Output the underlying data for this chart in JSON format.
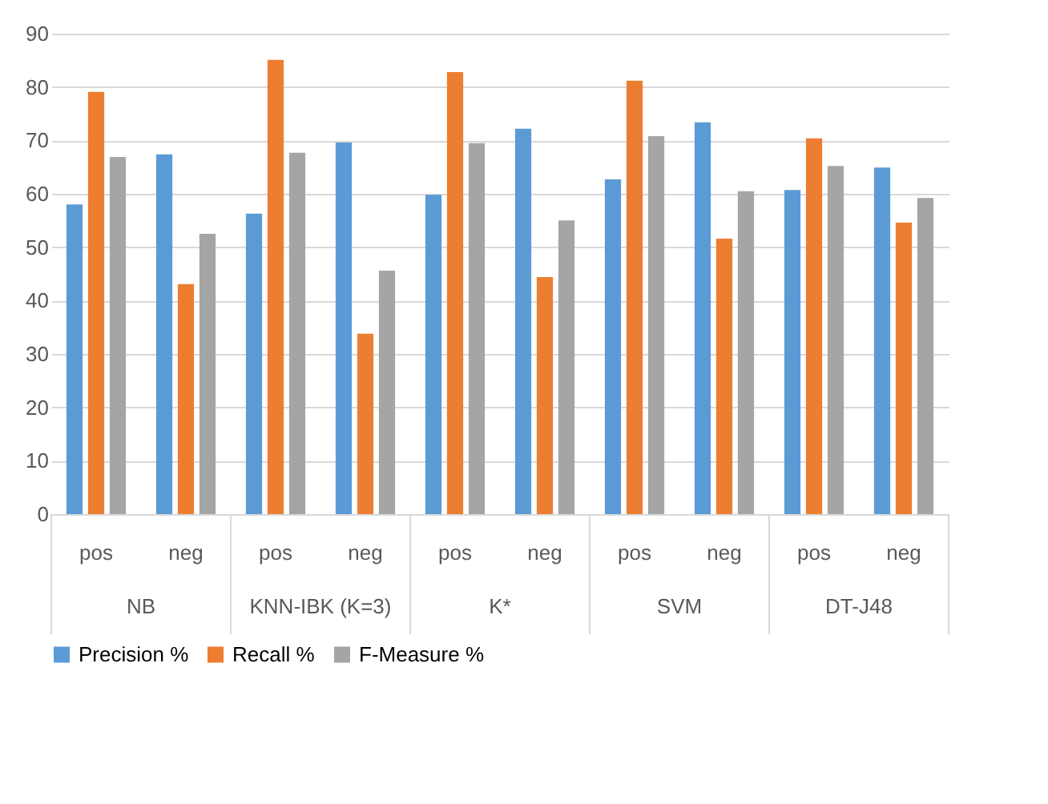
{
  "chart_data": {
    "type": "bar",
    "categories": [
      "pos",
      "neg",
      "pos",
      "neg",
      "pos",
      "neg",
      "pos",
      "neg",
      "pos",
      "neg"
    ],
    "annotations": [
      "NB",
      "KNN-IBK (K=3)",
      "K*",
      "SVM",
      "DT-J48"
    ],
    "series": [
      {
        "name": "Precision %",
        "color": "#5b9bd5",
        "values": [
          58.0,
          67.4,
          56.3,
          69.6,
          59.8,
          72.2,
          62.7,
          73.4,
          60.7,
          64.9
        ]
      },
      {
        "name": "Recall %",
        "color": "#ed7d31",
        "values": [
          79.1,
          43.1,
          85.1,
          33.8,
          82.8,
          44.4,
          81.2,
          51.6,
          70.4,
          54.6
        ]
      },
      {
        "name": "F-Measure %",
        "color": "#a5a5a5",
        "values": [
          66.9,
          52.5,
          67.7,
          45.6,
          69.5,
          55.0,
          70.8,
          60.5,
          65.2,
          59.2
        ]
      }
    ],
    "ylim": [
      0,
      90
    ],
    "yticks": [
      0,
      10,
      20,
      30,
      40,
      50,
      60,
      70,
      80,
      90
    ],
    "grid": "y",
    "legend": "bottom"
  }
}
